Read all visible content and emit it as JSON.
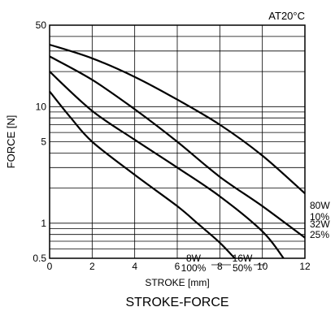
{
  "chart_data": {
    "type": "line",
    "title": "STROKE-FORCE",
    "note": "AT20°C",
    "xlabel": "STROKE [mm]",
    "ylabel": "FORCE [N]",
    "xlim": [
      0,
      12
    ],
    "ylim": [
      0.5,
      50
    ],
    "y_scale": "log",
    "grid": true,
    "x_ticks": [
      0,
      2,
      4,
      6,
      8,
      10,
      12
    ],
    "y_tick_labels": [
      {
        "value": 0.5,
        "label": "0.5"
      },
      {
        "value": 1,
        "label": "1"
      },
      {
        "value": 5,
        "label": "5"
      },
      {
        "value": 10,
        "label": "10"
      },
      {
        "value": 50,
        "label": "50"
      }
    ],
    "y_gridlines": [
      0.6,
      0.7,
      0.8,
      0.9,
      1,
      2,
      3,
      4,
      5,
      6,
      7,
      8,
      9,
      10,
      20,
      30,
      40
    ],
    "series": [
      {
        "label_lines": [
          "80W",
          "10%"
        ],
        "x": [
          0,
          2,
          4,
          6,
          8,
          10,
          12
        ],
        "y": [
          34,
          26,
          18,
          11.5,
          7,
          3.8,
          1.8
        ]
      },
      {
        "label_lines": [
          "32W",
          "25%"
        ],
        "x": [
          0,
          2,
          4,
          6,
          8,
          10,
          12
        ],
        "y": [
          27,
          17,
          9.5,
          5,
          2.5,
          1.4,
          0.75
        ]
      },
      {
        "label_lines": [
          "16W",
          "50%"
        ],
        "x": [
          0,
          2,
          4,
          6,
          8,
          10,
          11
        ],
        "y": [
          20,
          9.2,
          5.2,
          3.0,
          1.7,
          0.85,
          0.5
        ]
      },
      {
        "label_lines": [
          "8W",
          "100%"
        ],
        "x": [
          0,
          1,
          2,
          4,
          6,
          7,
          8,
          8.7
        ],
        "y": [
          13.5,
          8,
          5,
          2.6,
          1.4,
          0.98,
          0.68,
          0.5
        ]
      }
    ]
  }
}
